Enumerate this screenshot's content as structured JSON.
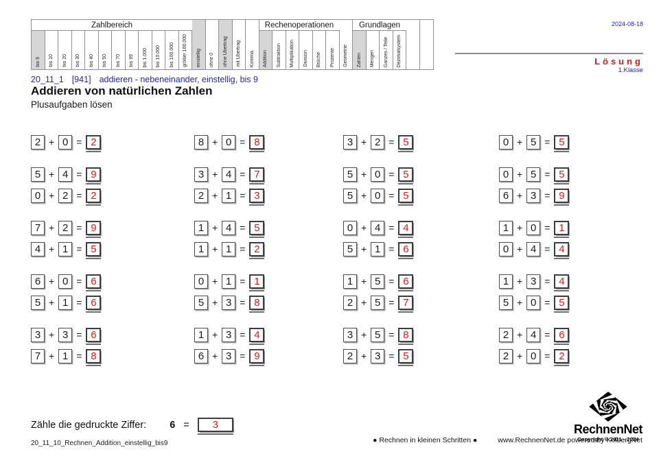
{
  "colors": {
    "accent_blue": "#2323cc",
    "accent_red": "#e51717",
    "header_highlight": "#d6d6d6"
  },
  "top": {
    "date": "2024-08-18",
    "solution": "Lösung",
    "grade": "1.Klasse"
  },
  "heading": {
    "meta_id": "20_11_1",
    "meta_code": "[941]",
    "meta_desc": "addieren - nebeneinander, einstellig, bis 9",
    "title": "Addieren von natürlichen Zahlen",
    "subtitle": "Plusaufgaben lösen"
  },
  "header_matrix": {
    "sections": [
      {
        "group": "Zahlbereich",
        "cols": [
          {
            "t": "bis 9",
            "hl": true
          },
          {
            "t": "bis 10"
          },
          {
            "t": "bis 20"
          },
          {
            "t": "bis 30"
          },
          {
            "t": "bis 40"
          },
          {
            "t": "bis 50"
          },
          {
            "t": "bis 70"
          },
          {
            "t": "bis 99"
          },
          {
            "t": "bis 1.000"
          },
          {
            "t": "bis 10.000"
          },
          {
            "t": "bis 100.000"
          },
          {
            "t": "größer 100.000"
          }
        ]
      },
      {
        "cols": [
          {
            "t": "einstellig",
            "hl": true
          },
          {
            "t": "ohne 0"
          },
          {
            "t": "ohne Übertrag",
            "hl": true
          },
          {
            "t": "mit Übertrag"
          },
          {
            "t": "Komma"
          }
        ]
      },
      {
        "group": "Rechenoperationen",
        "cols": [
          {
            "t": "Addition",
            "hl": true
          },
          {
            "t": "Subtraktion"
          },
          {
            "t": "Multiplikation"
          },
          {
            "t": "Division"
          },
          {
            "t": "Brüche"
          },
          {
            "t": "Prozente"
          }
        ]
      },
      {
        "cols": [
          {
            "t": "Geometrie"
          }
        ]
      },
      {
        "group": "Grundlagen",
        "cols": [
          {
            "t": "Zahlen",
            "hl": true
          },
          {
            "t": "Mengen"
          },
          {
            "t": "Ganzes / Teile"
          },
          {
            "t": "Dezimalsystem"
          }
        ]
      },
      {
        "cols": [
          {
            "t": ""
          },
          {
            "t": ""
          }
        ]
      }
    ]
  },
  "symbols": {
    "plus": "+",
    "equals": "="
  },
  "problems": {
    "groups": [
      [
        [
          {
            "a": "2",
            "b": "0",
            "s": "2"
          },
          {
            "a": "8",
            "b": "0",
            "s": "8"
          },
          {
            "a": "3",
            "b": "2",
            "s": "5"
          },
          {
            "a": "0",
            "b": "5",
            "s": "5"
          }
        ]
      ],
      [
        [
          {
            "a": "5",
            "b": "4",
            "s": "9"
          },
          {
            "a": "3",
            "b": "4",
            "s": "7"
          },
          {
            "a": "5",
            "b": "0",
            "s": "5"
          },
          {
            "a": "0",
            "b": "5",
            "s": "5"
          }
        ],
        [
          {
            "a": "0",
            "b": "2",
            "s": "2"
          },
          {
            "a": "2",
            "b": "1",
            "s": "3"
          },
          {
            "a": "5",
            "b": "0",
            "s": "5"
          },
          {
            "a": "6",
            "b": "3",
            "s": "9"
          }
        ]
      ],
      [
        [
          {
            "a": "7",
            "b": "2",
            "s": "9"
          },
          {
            "a": "1",
            "b": "4",
            "s": "5"
          },
          {
            "a": "0",
            "b": "4",
            "s": "4"
          },
          {
            "a": "1",
            "b": "0",
            "s": "1"
          }
        ],
        [
          {
            "a": "4",
            "b": "1",
            "s": "5"
          },
          {
            "a": "1",
            "b": "1",
            "s": "2"
          },
          {
            "a": "5",
            "b": "1",
            "s": "6"
          },
          {
            "a": "0",
            "b": "4",
            "s": "4"
          }
        ]
      ],
      [
        [
          {
            "a": "6",
            "b": "0",
            "s": "6"
          },
          {
            "a": "0",
            "b": "1",
            "s": "1"
          },
          {
            "a": "1",
            "b": "5",
            "s": "6"
          },
          {
            "a": "1",
            "b": "3",
            "s": "4"
          }
        ],
        [
          {
            "a": "5",
            "b": "1",
            "s": "6"
          },
          {
            "a": "5",
            "b": "3",
            "s": "8"
          },
          {
            "a": "2",
            "b": "5",
            "s": "7"
          },
          {
            "a": "5",
            "b": "0",
            "s": "5"
          }
        ]
      ],
      [
        [
          {
            "a": "3",
            "b": "3",
            "s": "6"
          },
          {
            "a": "1",
            "b": "3",
            "s": "4"
          },
          {
            "a": "3",
            "b": "5",
            "s": "8"
          },
          {
            "a": "2",
            "b": "4",
            "s": "6"
          }
        ],
        [
          {
            "a": "7",
            "b": "1",
            "s": "8"
          },
          {
            "a": "6",
            "b": "3",
            "s": "9"
          },
          {
            "a": "2",
            "b": "3",
            "s": "5"
          },
          {
            "a": "2",
            "b": "0",
            "s": "2"
          }
        ]
      ]
    ]
  },
  "bottom_task": {
    "label": "Zähle die gedruckte Ziffer:",
    "digit": "6",
    "answer": "3"
  },
  "footer": {
    "filename": "20_11_10_Rechnen_Addition_einstellig_bis9",
    "slogan": "● Rechnen in kleinen Schritten ●",
    "credit": "www.RechnenNet.de powered by KolbergNet"
  },
  "logo": {
    "name": "RechnenNet",
    "copyright": "Copyright © 2011 - 2024"
  }
}
